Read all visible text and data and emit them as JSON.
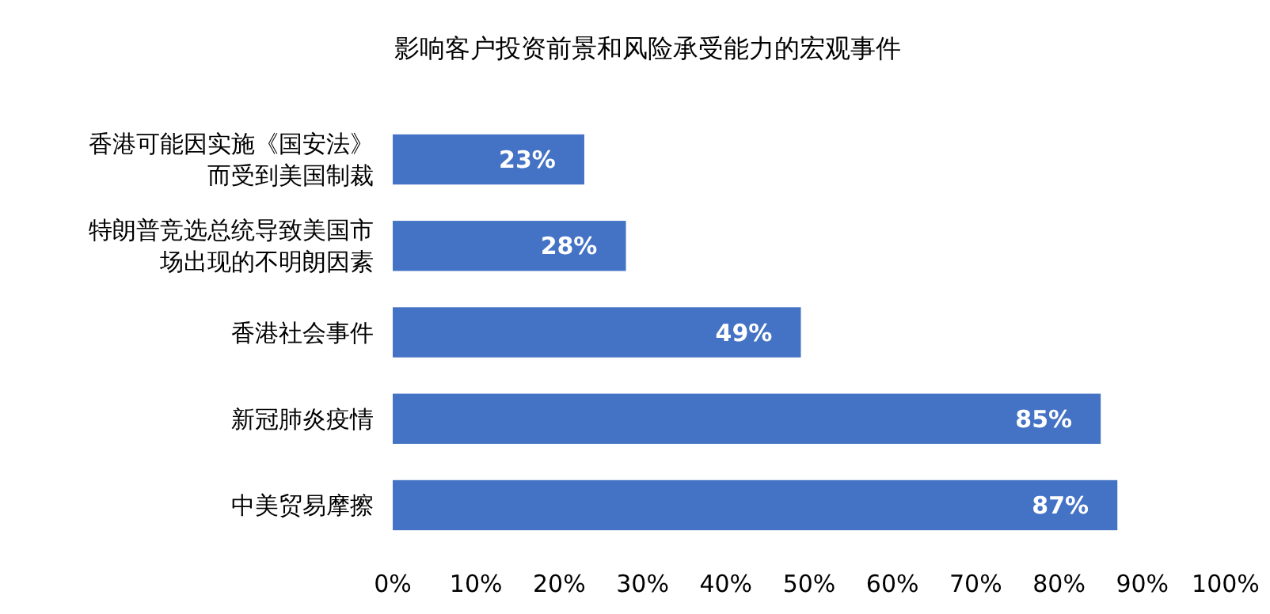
{
  "chart_data": {
    "type": "bar",
    "orientation": "horizontal",
    "title": "影响客户投资前景和风险承受能力的宏观事件",
    "categories": [
      "香港可能因实施《国安法》而受到美国制裁",
      "特朗普竞选总统导致美国市场出现的不明朗因素",
      "香港社会事件",
      "新冠肺炎疫情",
      "中美贸易摩擦"
    ],
    "values": [
      23,
      28,
      49,
      85,
      87
    ],
    "color": "#4472c4",
    "value_labels": [
      "23%",
      "28%",
      "49%",
      "85%",
      "87%"
    ],
    "xlim": [
      0,
      100
    ],
    "xticks": [
      {
        "value": 0,
        "label": "0%"
      },
      {
        "value": 10,
        "label": "10%"
      },
      {
        "value": 20,
        "label": "20%"
      },
      {
        "value": 30,
        "label": "30%"
      },
      {
        "value": 40,
        "label": "40%"
      },
      {
        "value": 50,
        "label": "50%"
      },
      {
        "value": 60,
        "label": "60%"
      },
      {
        "value": 70,
        "label": "70%"
      },
      {
        "value": 80,
        "label": "80%"
      },
      {
        "value": 90,
        "label": "90%"
      },
      {
        "value": 100,
        "label": "100%"
      }
    ],
    "grid": false
  }
}
